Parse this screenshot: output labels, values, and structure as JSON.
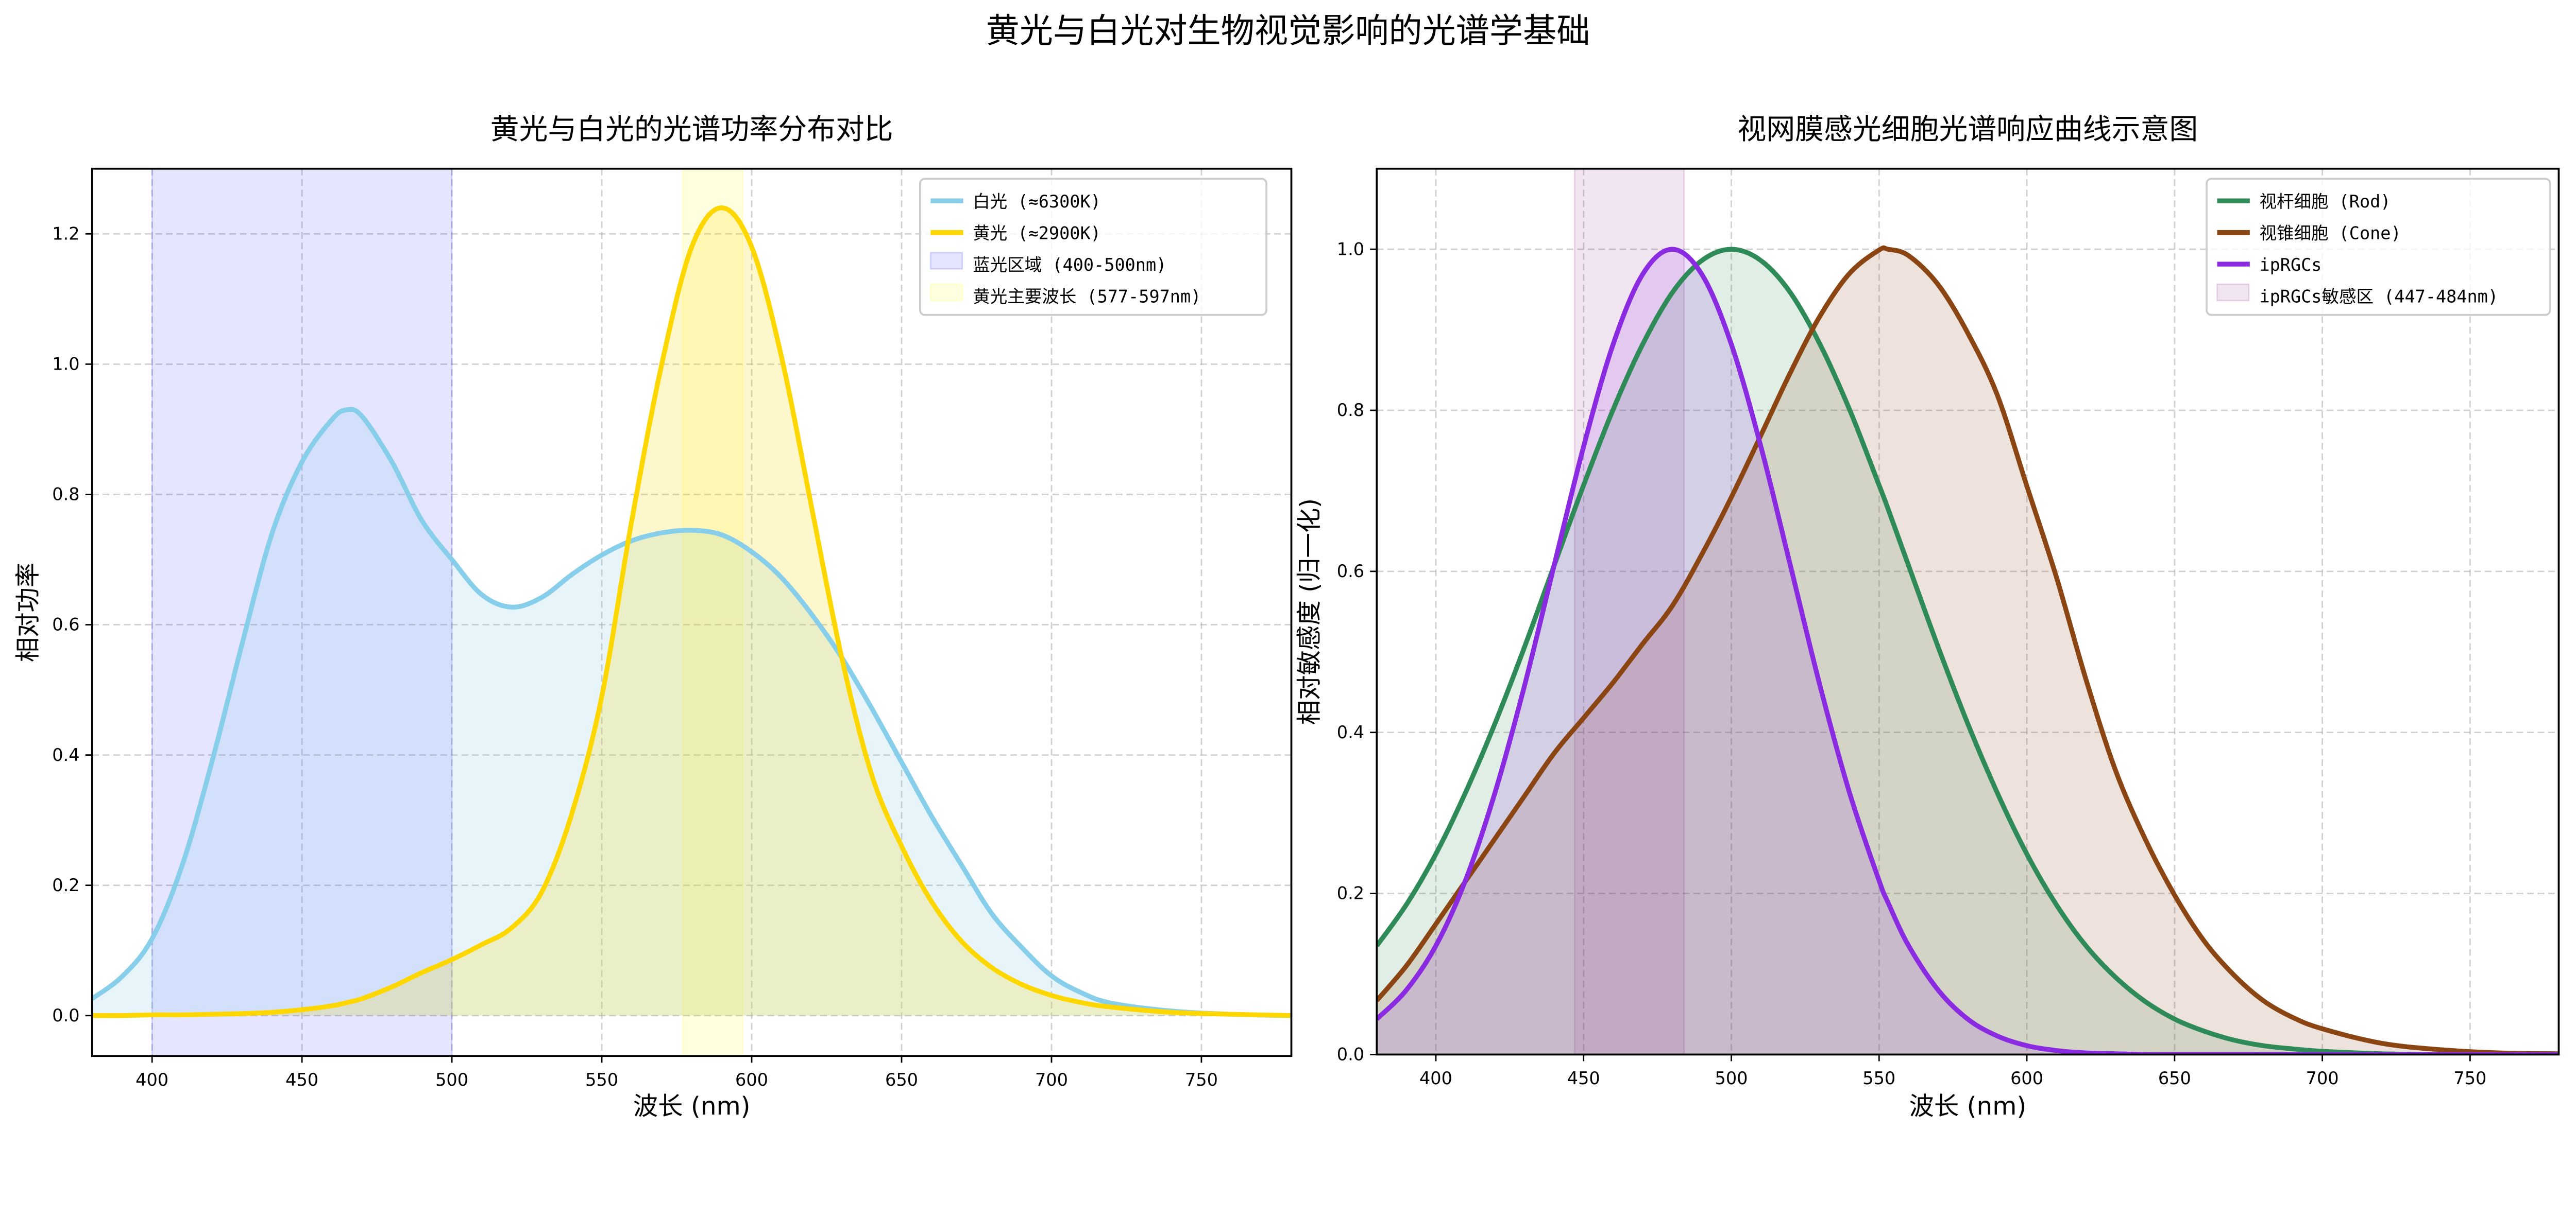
{
  "suptitle": "黄光与白光对生物视觉影响的光谱学基础",
  "chart_data": [
    {
      "type": "line",
      "title": "黄光与白光的光谱功率分布对比",
      "xlabel": "波长 (nm)",
      "ylabel": "相对功率",
      "xlim": [
        380,
        780
      ],
      "ylim": [
        -0.062,
        1.3
      ],
      "xticks": [
        "400",
        "450",
        "500",
        "550",
        "600",
        "650",
        "700",
        "750"
      ],
      "yticks": [
        "0.0",
        "0.2",
        "0.4",
        "0.6",
        "0.8",
        "1.0",
        "1.2"
      ],
      "grid": true,
      "legend_position": "top-right",
      "x": [
        380,
        390,
        400,
        410,
        420,
        430,
        440,
        450,
        460,
        465,
        470,
        480,
        490,
        500,
        510,
        520,
        530,
        540,
        550,
        560,
        570,
        580,
        590,
        600,
        610,
        620,
        630,
        640,
        650,
        660,
        670,
        680,
        690,
        700,
        710,
        720,
        740,
        760,
        780
      ],
      "series": [
        {
          "name": "白光 (≈6300K)",
          "color": "#87CEEB",
          "values": [
            0.026,
            0.06,
            0.118,
            0.23,
            0.39,
            0.57,
            0.74,
            0.85,
            0.915,
            0.93,
            0.92,
            0.85,
            0.76,
            0.7,
            0.646,
            0.627,
            0.642,
            0.677,
            0.707,
            0.729,
            0.741,
            0.745,
            0.738,
            0.712,
            0.672,
            0.616,
            0.55,
            0.472,
            0.389,
            0.306,
            0.231,
            0.157,
            0.105,
            0.061,
            0.035,
            0.019,
            0.007,
            0.002,
            0.0
          ]
        },
        {
          "name": "黄光 (≈2900K)",
          "color": "#FFD700",
          "values": [
            0.0,
            0.0,
            0.001,
            0.001,
            0.002,
            0.003,
            0.005,
            0.009,
            0.015,
            0.02,
            0.026,
            0.044,
            0.066,
            0.086,
            0.109,
            0.135,
            0.19,
            0.31,
            0.49,
            0.76,
            1.0,
            1.18,
            1.24,
            1.18,
            1.01,
            0.78,
            0.55,
            0.37,
            0.26,
            0.175,
            0.114,
            0.074,
            0.048,
            0.031,
            0.02,
            0.013,
            0.005,
            0.002,
            0.0
          ]
        }
      ],
      "spans": [
        {
          "name": "蓝光区域 (400-500nm)",
          "range": [
            400,
            500
          ],
          "color": "#0000FF"
        },
        {
          "name": "黄光主要波长 (577-597nm)",
          "range": [
            577,
            597
          ],
          "color": "#FFFF00"
        }
      ]
    },
    {
      "type": "line",
      "title": "视网膜感光细胞光谱响应曲线示意图",
      "xlabel": "波长 (nm)",
      "ylabel": "相对敏感度 (归一化)",
      "xlim": [
        380,
        780
      ],
      "ylim": [
        0,
        1.1
      ],
      "xticks": [
        "400",
        "450",
        "500",
        "550",
        "600",
        "650",
        "700",
        "750"
      ],
      "yticks": [
        "0.0",
        "0.2",
        "0.4",
        "0.6",
        "0.8",
        "1.0"
      ],
      "grid": true,
      "legend_position": "top-right",
      "x": [
        380,
        390,
        400,
        410,
        420,
        430,
        440,
        450,
        460,
        470,
        480,
        490,
        500,
        510,
        520,
        530,
        540,
        550,
        553,
        560,
        570,
        580,
        590,
        600,
        610,
        620,
        630,
        640,
        650,
        660,
        670,
        680,
        690,
        700,
        720,
        740,
        760,
        780
      ],
      "series": [
        {
          "name": "视杆细胞 (Rod)",
          "color": "#2E8B57",
          "values": [
            0.135,
            0.186,
            0.249,
            0.325,
            0.411,
            0.506,
            0.607,
            0.707,
            0.801,
            0.882,
            0.946,
            0.986,
            1.0,
            0.986,
            0.946,
            0.882,
            0.801,
            0.707,
            0.678,
            0.607,
            0.506,
            0.411,
            0.325,
            0.249,
            0.186,
            0.135,
            0.096,
            0.066,
            0.044,
            0.029,
            0.018,
            0.011,
            0.007,
            0.004,
            0.001,
            0.0,
            0.0,
            0.0
          ]
        },
        {
          "name": "视锥细胞 (Cone)",
          "color": "#8B4513",
          "values": [
            0.067,
            0.11,
            0.162,
            0.215,
            0.268,
            0.321,
            0.374,
            0.418,
            0.462,
            0.51,
            0.557,
            0.621,
            0.692,
            0.769,
            0.847,
            0.917,
            0.97,
            0.999,
            1.0,
            0.992,
            0.956,
            0.896,
            0.819,
            0.706,
            0.593,
            0.466,
            0.353,
            0.268,
            0.198,
            0.141,
            0.099,
            0.067,
            0.046,
            0.032,
            0.014,
            0.006,
            0.002,
            0.001
          ]
        },
        {
          "name": "ipRGCs",
          "color": "#8A2BE2",
          "values": [
            0.044,
            0.08,
            0.135,
            0.216,
            0.325,
            0.458,
            0.607,
            0.755,
            0.882,
            0.969,
            1.0,
            0.969,
            0.882,
            0.755,
            0.607,
            0.458,
            0.325,
            0.216,
            0.189,
            0.135,
            0.08,
            0.044,
            0.023,
            0.011,
            0.005,
            0.002,
            0.001,
            0.0,
            0.0,
            0.0,
            0.0,
            0.0,
            0.0,
            0.0,
            0.0,
            0.0,
            0.0,
            0.0
          ]
        }
      ],
      "spans": [
        {
          "name": "ipRGCs敏感区 (447-484nm)",
          "range": [
            447,
            484
          ],
          "color": "#800080"
        }
      ]
    }
  ]
}
